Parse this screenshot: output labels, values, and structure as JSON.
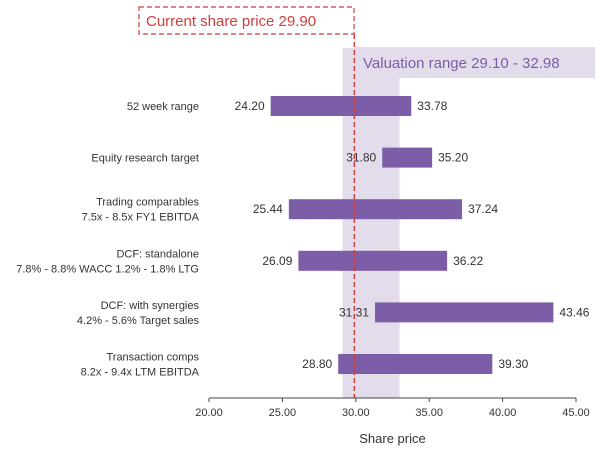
{
  "chart_data": {
    "type": "bar",
    "subtype": "floating-range-bar (football field)",
    "orientation": "horizontal",
    "xlabel": "Share price",
    "xlim": [
      20,
      45
    ],
    "xticks": [
      "20.00",
      "25.00",
      "30.00",
      "35.00",
      "40.00",
      "45.00"
    ],
    "categories": [
      {
        "lines": [
          "52 week range"
        ],
        "low": 24.2,
        "high": 33.78,
        "low_label": "24.20",
        "high_label": "33.78"
      },
      {
        "lines": [
          "Equity research target"
        ],
        "low": 31.8,
        "high": 35.2,
        "low_label": "31.80",
        "high_label": "35.20"
      },
      {
        "lines": [
          "Trading comparables",
          "7.5x - 8.5x FY1 EBITDA"
        ],
        "low": 25.44,
        "high": 37.24,
        "low_label": "25.44",
        "high_label": "37.24"
      },
      {
        "lines": [
          "DCF: standalone",
          "7.8% - 8.8% WACC 1.2% - 1.8% LTG"
        ],
        "low": 26.09,
        "high": 36.22,
        "low_label": "26.09",
        "high_label": "36.22"
      },
      {
        "lines": [
          "DCF: with synergies",
          "4.2% - 5.6% Target sales"
        ],
        "low": 31.31,
        "high": 43.46,
        "low_label": "31.31",
        "high_label": "43.46"
      },
      {
        "lines": [
          "Transaction comps",
          "8.2x - 9.4x LTM EBITDA"
        ],
        "low": 28.8,
        "high": 39.3,
        "low_label": "28.80",
        "high_label": "39.30"
      }
    ],
    "current_price": {
      "text": "Current share price  29.90",
      "value": 29.9
    },
    "valuation_range": {
      "text": "Valuation range  29.10 - 32.98",
      "low": 29.1,
      "high": 32.98
    },
    "colors": {
      "bar": "#7b5ea7",
      "valuation_band": "#e3ddeb",
      "price_line": "#d13c3c",
      "range_text": "#7b5ea7",
      "axis": "#444444"
    }
  }
}
